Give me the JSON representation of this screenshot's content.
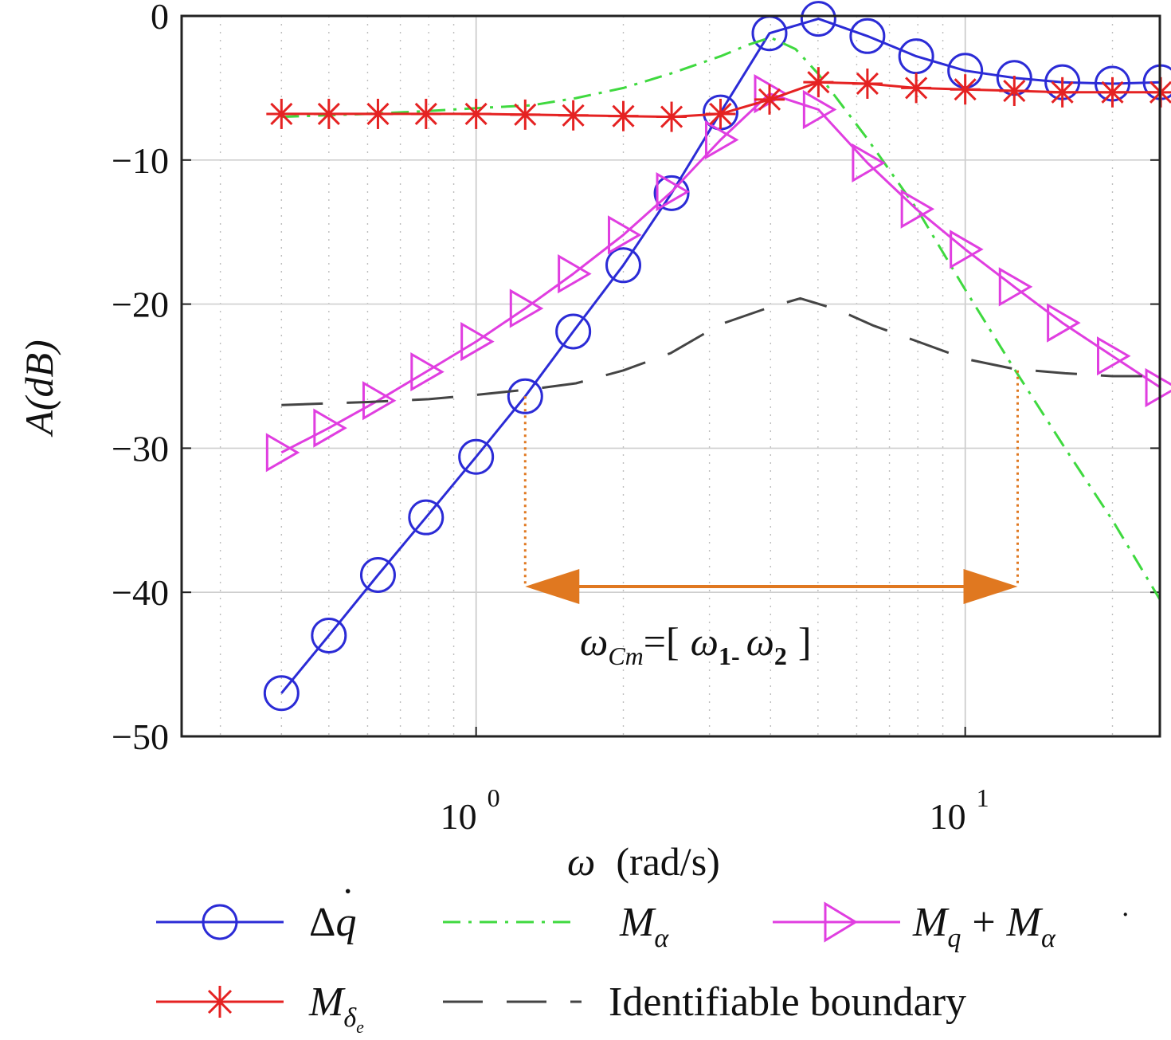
{
  "chart_data": {
    "type": "line",
    "title": "",
    "xlabel": "ω  (rad/s)",
    "ylabel": "A(dB)",
    "xscale": "log",
    "xlim": [
      0.25,
      25
    ],
    "ylim": [
      -50,
      0
    ],
    "yticks": [
      0,
      -10,
      -20,
      -30,
      -40,
      -50
    ],
    "ytick_labels": [
      "0",
      "−10",
      "−20",
      "−30",
      "−40",
      "−50"
    ],
    "xticks": [
      1,
      10
    ],
    "xtick_labels": [
      {
        "base": "10",
        "exp": "0"
      },
      {
        "base": "10",
        "exp": "1"
      }
    ],
    "grid": true,
    "legend_position": "bottom",
    "series": [
      {
        "name": "Δq̇",
        "color": "#2b2bd6",
        "marker": "circle",
        "dash": "solid",
        "x": [
          0.4,
          0.5,
          0.63,
          0.79,
          1.0,
          1.26,
          1.58,
          2.0,
          2.51,
          3.16,
          3.98,
          5.01,
          6.31,
          7.94,
          10.0,
          12.6,
          15.8,
          20.0,
          25.1
        ],
        "y": [
          -47,
          -43,
          -38.8,
          -34.8,
          -30.6,
          -26.4,
          -21.9,
          -17.3,
          -12.3,
          -6.7,
          -1.2,
          -0.2,
          -1.4,
          -2.8,
          -3.8,
          -4.3,
          -4.6,
          -4.7,
          -4.6
        ]
      },
      {
        "name": "M_α",
        "color": "#3fd93f",
        "marker": "none",
        "dash": "dashdot",
        "x": [
          0.4,
          0.6,
          0.8,
          1.0,
          1.3,
          1.6,
          2.0,
          2.5,
          3.16,
          3.6,
          4.0,
          4.5,
          5.0,
          6.3,
          8.0,
          10.0,
          12.6,
          16.0,
          20.0,
          25.0
        ],
        "y": [
          -7,
          -6.8,
          -6.6,
          -6.4,
          -6.2,
          -5.7,
          -5.0,
          -4.0,
          -2.8,
          -2.0,
          -1.5,
          -2.3,
          -4.0,
          -8.5,
          -13.5,
          -19.0,
          -24.5,
          -30.0,
          -35.0,
          -40.5
        ]
      },
      {
        "name": "M_q + M_α̇",
        "color": "#e03ee0",
        "marker": "triangle-right",
        "dash": "solid",
        "x": [
          0.4,
          0.5,
          0.63,
          0.79,
          1.0,
          1.26,
          1.58,
          2.0,
          2.51,
          3.16,
          3.98,
          5.01,
          6.31,
          7.94,
          10.0,
          12.6,
          15.8,
          20.0,
          25.1
        ],
        "y": [
          -30.3,
          -28.6,
          -26.7,
          -24.7,
          -22.6,
          -20.3,
          -17.9,
          -15.2,
          -12.2,
          -8.6,
          -5.4,
          -6.5,
          -10.2,
          -13.4,
          -16.2,
          -18.8,
          -21.3,
          -23.6,
          -25.8
        ]
      },
      {
        "name": "M_δe",
        "color": "#e52222",
        "marker": "asterisk",
        "dash": "solid",
        "x": [
          0.4,
          0.5,
          0.63,
          0.79,
          1.0,
          1.26,
          1.58,
          2.0,
          2.51,
          3.16,
          3.98,
          5.01,
          6.31,
          7.94,
          10.0,
          12.6,
          15.8,
          20.0,
          25.1
        ],
        "y": [
          -6.8,
          -6.8,
          -6.8,
          -6.8,
          -6.8,
          -6.85,
          -6.9,
          -6.95,
          -7.0,
          -6.8,
          -5.8,
          -4.6,
          -4.7,
          -5.0,
          -5.1,
          -5.2,
          -5.3,
          -5.3,
          -5.3
        ]
      },
      {
        "name": "Identifiable boundary",
        "color": "#444444",
        "marker": "none",
        "dash": "longdash",
        "x": [
          0.4,
          0.6,
          0.8,
          1.0,
          1.3,
          1.6,
          2.0,
          2.5,
          3.16,
          4.0,
          4.6,
          5.5,
          6.5,
          8.0,
          10.0,
          12.6,
          16.0,
          20.0,
          25.0
        ],
        "y": [
          -27.0,
          -26.8,
          -26.6,
          -26.3,
          -25.9,
          -25.5,
          -24.6,
          -23.4,
          -21.4,
          -20.2,
          -19.6,
          -20.4,
          -21.5,
          -22.6,
          -23.8,
          -24.5,
          -24.8,
          -25.0,
          -25.0
        ]
      }
    ],
    "annotations": [
      {
        "type": "vline",
        "x": 1.26,
        "y_from": -26.4,
        "y_to": -39.6,
        "color": "#e07820",
        "dash": "dotted"
      },
      {
        "type": "vline",
        "x": 12.8,
        "y_from": -24.6,
        "y_to": -39.6,
        "color": "#e07820",
        "dash": "dotted"
      },
      {
        "type": "double-arrow",
        "x_from": 1.26,
        "x_to": 12.8,
        "y": -39.6,
        "color": "#e07820"
      },
      {
        "type": "text",
        "text": "ωCm=[ ω1- ω2 ]",
        "x": 3.4,
        "y": -44.5
      }
    ],
    "interval_label": {
      "omega": "ω",
      "sub": "Cm",
      "eq": "=[",
      "w1": "ω",
      "w1_sub": "1-",
      "w2": "ω",
      "w2_sub": "2",
      "close": "]"
    },
    "legend_labels": {
      "dq_delta": "Δ",
      "dq_q": "q",
      "dq_dot": "˙",
      "malpha_M": "M",
      "malpha_sub": "α",
      "mq_M1": "M",
      "mq_sub1": "q",
      "mq_plus": "+",
      "mq_M2": "M",
      "mq_sub2": "α",
      "mq_dot": "˙",
      "mde_M": "M",
      "mde_sub": "δ",
      "mde_subsub": "e",
      "boundary": "Identifiable boundary"
    },
    "xlabel_parts": {
      "omega": "ω",
      "unit": "(rad/s)"
    },
    "ylabel_parts": {
      "A": "A",
      "unit": "(dB)"
    }
  }
}
